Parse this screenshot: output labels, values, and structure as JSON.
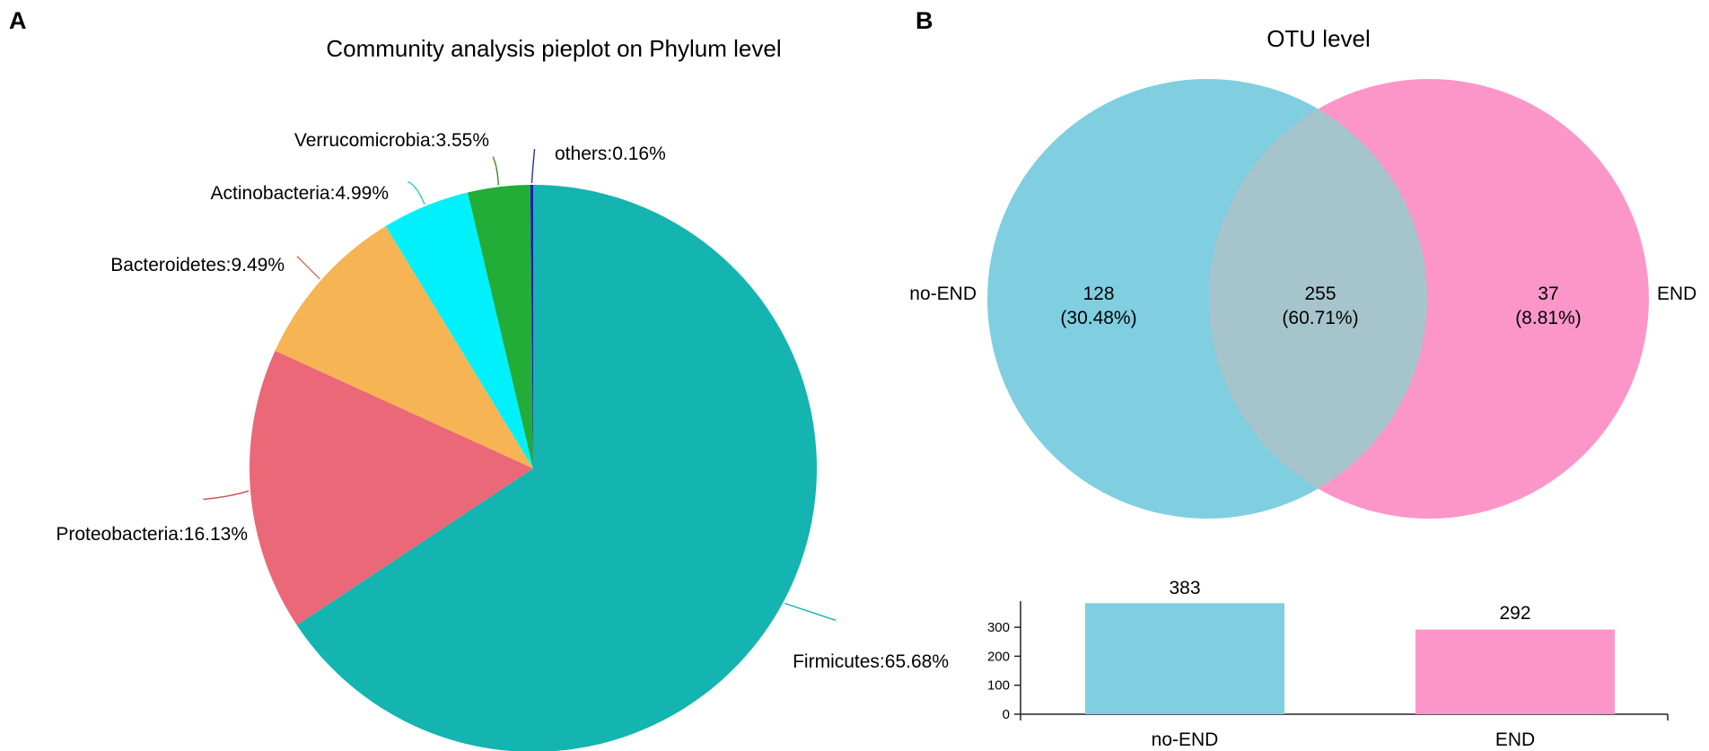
{
  "panels": {
    "a": {
      "letter": "A"
    },
    "b": {
      "letter": "B"
    }
  },
  "chart_data": [
    {
      "type": "pie",
      "title": "Community analysis pieplot on Phylum level",
      "slices": [
        {
          "label": "Firmicutes",
          "value": 65.68,
          "display": "Firmicutes:65.68%",
          "color": "#14b4b0"
        },
        {
          "label": "Proteobacteria",
          "value": 16.13,
          "display": "Proteobacteria:16.13%",
          "color": "#eb6878"
        },
        {
          "label": "Bacteroidetes",
          "value": 9.49,
          "display": "Bacteroidetes:9.49%",
          "color": "#f6b454"
        },
        {
          "label": "Actinobacteria",
          "value": 4.99,
          "display": "Actinobacteria:4.99%",
          "color": "#00f0fc"
        },
        {
          "label": "Verrucomicrobia",
          "value": 3.55,
          "display": "Verrucomicrobia:3.55%",
          "color": "#22ac38"
        },
        {
          "label": "others",
          "value": 0.16,
          "display": "others:0.16%",
          "color": "#1e1eb4"
        }
      ],
      "leader_colors": [
        "#14b4b0",
        "#d04848",
        "#d07060",
        "#30c8dc",
        "#3c8c1c",
        "#2030b0"
      ]
    },
    {
      "type": "venn",
      "title": "OTU level",
      "sets": [
        {
          "name": "no-END",
          "color": "#7fcfe0"
        },
        {
          "name": "END",
          "color": "#fc96c8"
        }
      ],
      "intersection_color": "#a6c4cc",
      "regions": [
        {
          "id": "no-END only",
          "count": "128",
          "percent": "(30.48%)"
        },
        {
          "id": "shared",
          "count": "255",
          "percent": "(60.71%)"
        },
        {
          "id": "END only",
          "count": "37",
          "percent": "(8.81%)"
        }
      ]
    },
    {
      "type": "bar",
      "categories": [
        "no-END",
        "END"
      ],
      "values": [
        383,
        292
      ],
      "value_labels": [
        "383",
        "292"
      ],
      "colors": [
        "#7fcfe0",
        "#fc96c8"
      ],
      "ylim": [
        0,
        390
      ],
      "yticks": [
        0,
        100,
        200,
        300
      ],
      "ytick_labels": [
        "0",
        "100",
        "200",
        "300"
      ],
      "xlabel": "",
      "ylabel": ""
    }
  ]
}
